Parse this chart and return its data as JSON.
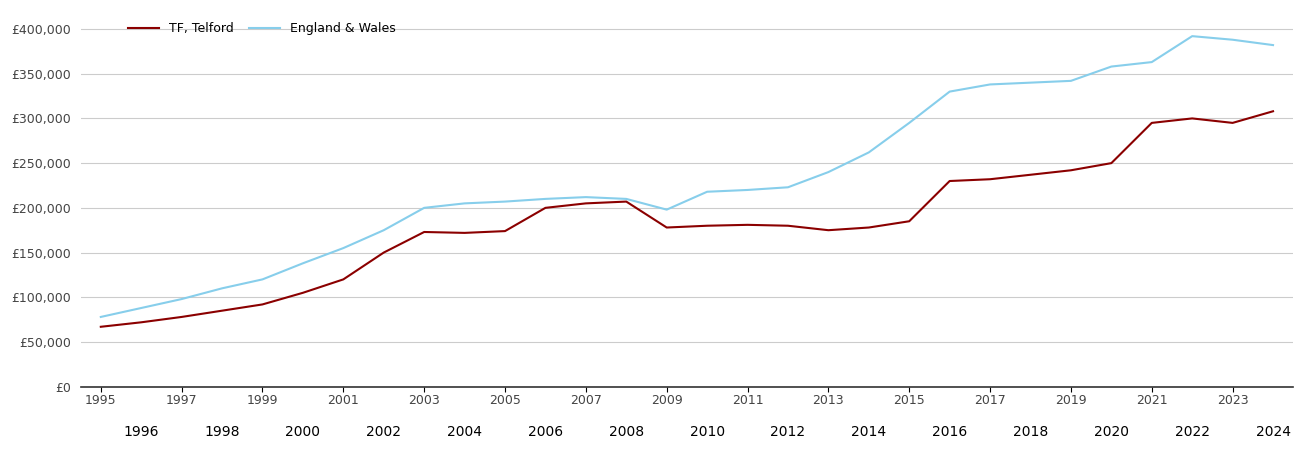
{
  "tf_telford_years": [
    1995,
    1996,
    1997,
    1998,
    1999,
    2000,
    2001,
    2002,
    2003,
    2004,
    2005,
    2006,
    2007,
    2008,
    2009,
    2010,
    2011,
    2012,
    2013,
    2014,
    2015,
    2016,
    2017,
    2018,
    2019,
    2020,
    2021,
    2022,
    2023,
    2024
  ],
  "tf_telford_values": [
    67000,
    72000,
    78000,
    85000,
    92000,
    105000,
    120000,
    150000,
    173000,
    172000,
    174000,
    200000,
    205000,
    207000,
    178000,
    180000,
    181000,
    180000,
    175000,
    178000,
    185000,
    230000,
    232000,
    237000,
    242000,
    250000,
    295000,
    300000,
    295000,
    308000
  ],
  "england_wales_years": [
    1995,
    1996,
    1997,
    1998,
    1999,
    2000,
    2001,
    2002,
    2003,
    2004,
    2005,
    2006,
    2007,
    2008,
    2009,
    2010,
    2011,
    2012,
    2013,
    2014,
    2015,
    2016,
    2017,
    2018,
    2019,
    2020,
    2021,
    2022,
    2023,
    2024
  ],
  "england_wales_values": [
    78000,
    88000,
    98000,
    110000,
    120000,
    138000,
    155000,
    175000,
    200000,
    205000,
    207000,
    210000,
    212000,
    210000,
    198000,
    218000,
    220000,
    223000,
    240000,
    262000,
    295000,
    330000,
    338000,
    340000,
    342000,
    358000,
    363000,
    392000,
    388000,
    382000
  ],
  "tf_color": "#8B0000",
  "ew_color": "#87CEEB",
  "tf_label": "TF, Telford",
  "ew_label": "England & Wales",
  "ylim": [
    0,
    420000
  ],
  "yticks": [
    0,
    50000,
    100000,
    150000,
    200000,
    250000,
    300000,
    350000,
    400000
  ],
  "ytick_labels": [
    "£0",
    "£50,000",
    "£100,000",
    "£150,000",
    "£200,000",
    "£250,000",
    "£300,000",
    "£350,000",
    "£400,000"
  ],
  "xlim": [
    1994.5,
    2024.5
  ],
  "odd_years": [
    1995,
    1997,
    1999,
    2001,
    2003,
    2005,
    2007,
    2009,
    2011,
    2013,
    2015,
    2017,
    2019,
    2021,
    2023
  ],
  "even_years": [
    1996,
    1998,
    2000,
    2002,
    2004,
    2006,
    2008,
    2010,
    2012,
    2014,
    2016,
    2018,
    2020,
    2022,
    2024
  ],
  "line_width": 1.5,
  "background_color": "#ffffff",
  "plot_bg_color": "#ffffff",
  "grid_color": "#cccccc"
}
